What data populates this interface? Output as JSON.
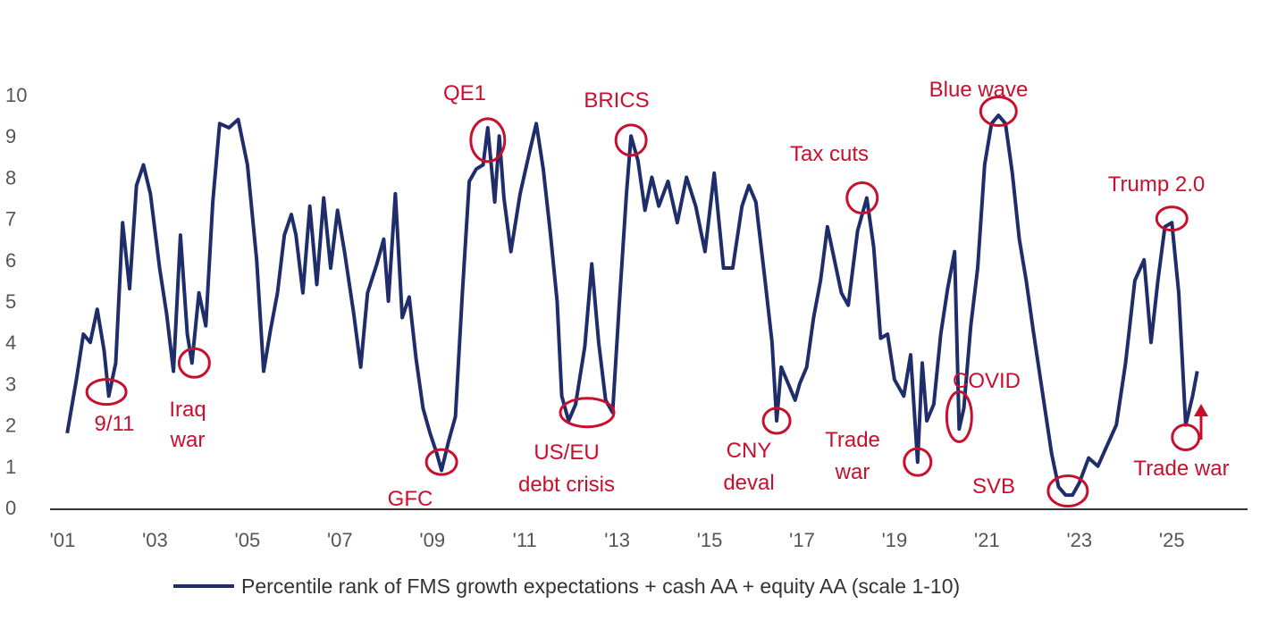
{
  "chart_data": {
    "type": "line",
    "xlabel": "",
    "ylabel": "",
    "xlim": [
      2001.0,
      2026.6
    ],
    "ylim": [
      0,
      10
    ],
    "grid": false,
    "legend_position": "bottom",
    "y_ticks": [
      "0",
      "1",
      "2",
      "3",
      "4",
      "5",
      "6",
      "7",
      "8",
      "9",
      "10"
    ],
    "x_ticks": [
      {
        "label": "'01",
        "x": 2001
      },
      {
        "label": "'03",
        "x": 2003
      },
      {
        "label": "'05",
        "x": 2005
      },
      {
        "label": "'07",
        "x": 2007
      },
      {
        "label": "'09",
        "x": 2009
      },
      {
        "label": "'11",
        "x": 2011
      },
      {
        "label": "'13",
        "x": 2013
      },
      {
        "label": "'15",
        "x": 2015
      },
      {
        "label": "'17",
        "x": 2017
      },
      {
        "label": "'19",
        "x": 2019
      },
      {
        "label": "'21",
        "x": 2021
      },
      {
        "label": "'23",
        "x": 2023
      },
      {
        "label": "'25",
        "x": 2025
      }
    ],
    "colors": {
      "line": "#1f2d6b",
      "annotation": "#c8102e",
      "axis": "#333333"
    },
    "series": [
      {
        "name": "Percentile rank of FMS growth expectations + cash AA + equity AA (scale 1-10)",
        "points": [
          [
            2001.1,
            1.8
          ],
          [
            2001.3,
            3.1
          ],
          [
            2001.45,
            4.2
          ],
          [
            2001.6,
            4.0
          ],
          [
            2001.75,
            4.8
          ],
          [
            2001.9,
            3.8
          ],
          [
            2002.0,
            2.7
          ],
          [
            2002.15,
            3.5
          ],
          [
            2002.3,
            6.9
          ],
          [
            2002.45,
            5.3
          ],
          [
            2002.6,
            7.8
          ],
          [
            2002.75,
            8.3
          ],
          [
            2002.9,
            7.6
          ],
          [
            2003.1,
            5.8
          ],
          [
            2003.25,
            4.7
          ],
          [
            2003.4,
            3.3
          ],
          [
            2003.55,
            6.6
          ],
          [
            2003.7,
            4.2
          ],
          [
            2003.8,
            3.5
          ],
          [
            2003.95,
            5.2
          ],
          [
            2004.1,
            4.4
          ],
          [
            2004.25,
            7.4
          ],
          [
            2004.4,
            9.3
          ],
          [
            2004.6,
            9.2
          ],
          [
            2004.8,
            9.4
          ],
          [
            2005.0,
            8.3
          ],
          [
            2005.2,
            6.0
          ],
          [
            2005.35,
            3.3
          ],
          [
            2005.5,
            4.3
          ],
          [
            2005.65,
            5.2
          ],
          [
            2005.8,
            6.6
          ],
          [
            2005.95,
            7.1
          ],
          [
            2006.05,
            6.6
          ],
          [
            2006.2,
            5.2
          ],
          [
            2006.35,
            7.3
          ],
          [
            2006.5,
            5.4
          ],
          [
            2006.65,
            7.5
          ],
          [
            2006.8,
            5.8
          ],
          [
            2006.95,
            7.2
          ],
          [
            2007.1,
            6.2
          ],
          [
            2007.3,
            4.7
          ],
          [
            2007.45,
            3.4
          ],
          [
            2007.6,
            5.2
          ],
          [
            2007.8,
            5.9
          ],
          [
            2007.95,
            6.5
          ],
          [
            2008.05,
            5.0
          ],
          [
            2008.2,
            7.6
          ],
          [
            2008.35,
            4.6
          ],
          [
            2008.5,
            5.1
          ],
          [
            2008.65,
            3.6
          ],
          [
            2008.8,
            2.4
          ],
          [
            2008.95,
            1.8
          ],
          [
            2009.1,
            1.3
          ],
          [
            2009.2,
            0.9
          ],
          [
            2009.35,
            1.6
          ],
          [
            2009.5,
            2.2
          ],
          [
            2009.65,
            5.2
          ],
          [
            2009.8,
            7.9
          ],
          [
            2009.95,
            8.2
          ],
          [
            2010.1,
            8.3
          ],
          [
            2010.2,
            9.2
          ],
          [
            2010.35,
            7.4
          ],
          [
            2010.45,
            9.0
          ],
          [
            2010.55,
            7.5
          ],
          [
            2010.7,
            6.2
          ],
          [
            2010.9,
            7.6
          ],
          [
            2011.1,
            8.6
          ],
          [
            2011.25,
            9.3
          ],
          [
            2011.4,
            8.2
          ],
          [
            2011.55,
            6.7
          ],
          [
            2011.7,
            5.0
          ],
          [
            2011.8,
            2.7
          ],
          [
            2011.95,
            2.1
          ],
          [
            2012.1,
            2.5
          ],
          [
            2012.3,
            3.9
          ],
          [
            2012.45,
            5.9
          ],
          [
            2012.6,
            4.0
          ],
          [
            2012.75,
            2.6
          ],
          [
            2012.9,
            2.3
          ],
          [
            2013.05,
            5.0
          ],
          [
            2013.2,
            7.6
          ],
          [
            2013.3,
            9.0
          ],
          [
            2013.45,
            8.4
          ],
          [
            2013.6,
            7.2
          ],
          [
            2013.75,
            8.0
          ],
          [
            2013.9,
            7.3
          ],
          [
            2014.1,
            7.9
          ],
          [
            2014.3,
            6.9
          ],
          [
            2014.5,
            8.0
          ],
          [
            2014.7,
            7.3
          ],
          [
            2014.9,
            6.2
          ],
          [
            2015.1,
            8.1
          ],
          [
            2015.3,
            5.8
          ],
          [
            2015.5,
            5.8
          ],
          [
            2015.7,
            7.3
          ],
          [
            2015.85,
            7.8
          ],
          [
            2016.0,
            7.4
          ],
          [
            2016.2,
            5.5
          ],
          [
            2016.35,
            4.0
          ],
          [
            2016.45,
            2.1
          ],
          [
            2016.55,
            3.4
          ],
          [
            2016.7,
            3.0
          ],
          [
            2016.85,
            2.6
          ],
          [
            2016.95,
            3.0
          ],
          [
            2017.1,
            3.4
          ],
          [
            2017.25,
            4.6
          ],
          [
            2017.4,
            5.5
          ],
          [
            2017.55,
            6.8
          ],
          [
            2017.7,
            6.0
          ],
          [
            2017.85,
            5.2
          ],
          [
            2018.0,
            4.9
          ],
          [
            2018.2,
            6.7
          ],
          [
            2018.4,
            7.5
          ],
          [
            2018.55,
            6.3
          ],
          [
            2018.7,
            4.1
          ],
          [
            2018.85,
            4.2
          ],
          [
            2019.0,
            3.1
          ],
          [
            2019.2,
            2.7
          ],
          [
            2019.35,
            3.7
          ],
          [
            2019.5,
            1.1
          ],
          [
            2019.6,
            3.5
          ],
          [
            2019.7,
            2.1
          ],
          [
            2019.85,
            2.5
          ],
          [
            2020.0,
            4.2
          ],
          [
            2020.15,
            5.3
          ],
          [
            2020.3,
            6.2
          ],
          [
            2020.4,
            1.9
          ],
          [
            2020.5,
            2.4
          ],
          [
            2020.65,
            4.4
          ],
          [
            2020.8,
            5.8
          ],
          [
            2020.95,
            8.3
          ],
          [
            2021.1,
            9.3
          ],
          [
            2021.25,
            9.5
          ],
          [
            2021.4,
            9.3
          ],
          [
            2021.55,
            8.1
          ],
          [
            2021.7,
            6.5
          ],
          [
            2021.85,
            5.5
          ],
          [
            2022.0,
            4.3
          ],
          [
            2022.2,
            2.8
          ],
          [
            2022.4,
            1.3
          ],
          [
            2022.55,
            0.5
          ],
          [
            2022.7,
            0.3
          ],
          [
            2022.85,
            0.3
          ],
          [
            2023.0,
            0.6
          ],
          [
            2023.2,
            1.2
          ],
          [
            2023.4,
            1.0
          ],
          [
            2023.6,
            1.5
          ],
          [
            2023.8,
            2.0
          ],
          [
            2024.0,
            3.5
          ],
          [
            2024.2,
            5.5
          ],
          [
            2024.4,
            6.0
          ],
          [
            2024.55,
            4.0
          ],
          [
            2024.7,
            5.5
          ],
          [
            2024.85,
            6.8
          ],
          [
            2025.0,
            6.9
          ],
          [
            2025.15,
            5.2
          ],
          [
            2025.3,
            2.0
          ],
          [
            2025.45,
            2.7
          ],
          [
            2025.55,
            3.3
          ]
        ]
      }
    ],
    "annotations": [
      {
        "label": "9/11",
        "x": 2001.95,
        "y": 2.8,
        "ring": [
          22,
          14
        ]
      },
      {
        "label": "Iraq war",
        "x": 2003.85,
        "y": 3.5,
        "ring": [
          17,
          16
        ]
      },
      {
        "label": "GFC",
        "x": 2009.2,
        "y": 1.1,
        "ring": [
          17,
          14
        ]
      },
      {
        "label": "QE1",
        "x": 2010.2,
        "y": 8.9,
        "ring": [
          19,
          24
        ]
      },
      {
        "label": "US/EU debt crisis",
        "x": 2012.35,
        "y": 2.3,
        "ring": [
          30,
          16
        ]
      },
      {
        "label": "BRICS",
        "x": 2013.3,
        "y": 8.9,
        "ring": [
          17,
          17
        ]
      },
      {
        "label": "CNY deval",
        "x": 2016.45,
        "y": 2.1,
        "ring": [
          15,
          14
        ]
      },
      {
        "label": "Tax cuts",
        "x": 2018.3,
        "y": 7.5,
        "ring": [
          17,
          17
        ]
      },
      {
        "label": "Trade war",
        "x": 2019.5,
        "y": 1.1,
        "ring": [
          15,
          15
        ]
      },
      {
        "label": "COVID",
        "x": 2020.4,
        "y": 2.2,
        "ring": [
          14,
          28
        ]
      },
      {
        "label": "Blue wave",
        "x": 2021.25,
        "y": 9.6,
        "ring": [
          20,
          16
        ]
      },
      {
        "label": "SVB",
        "x": 2022.75,
        "y": 0.4,
        "ring": [
          22,
          17
        ]
      },
      {
        "label": "Trump 2.0",
        "x": 2025.0,
        "y": 7.0,
        "ring": [
          17,
          13
        ]
      },
      {
        "label": "Trade war",
        "x": 2025.3,
        "y": 1.7,
        "ring": [
          15,
          14
        ]
      }
    ]
  }
}
